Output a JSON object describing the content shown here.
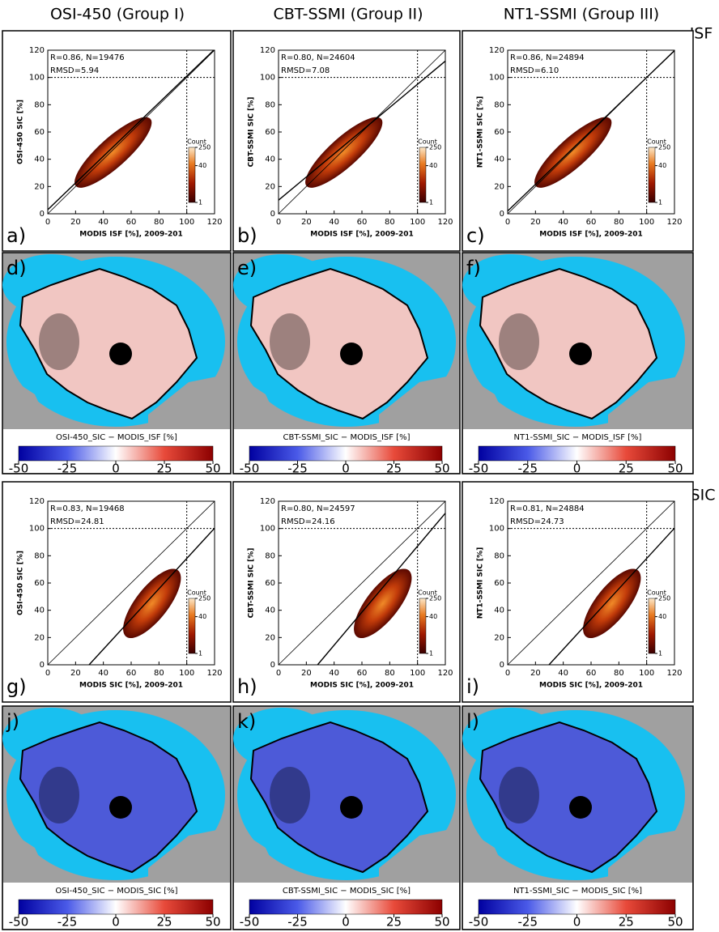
{
  "figure": {
    "columns": [
      "OSI-450 (Group I)",
      "CBT-SSMI (Group II)",
      "NT1-SSMI (Group III)"
    ],
    "rows": [
      "ISF",
      "SIC"
    ],
    "axis_lim": [
      0,
      120
    ],
    "axis_ticks": [
      0,
      20,
      40,
      60,
      80,
      100,
      120
    ],
    "ref_line": 100,
    "count_bar": {
      "title": "Count",
      "ticks": [
        250,
        40,
        1
      ]
    },
    "map_ticks": [
      -50,
      -25,
      0,
      25,
      50
    ],
    "scatter_panels": [
      {
        "letter": "a)",
        "stats": "R=0.86, N=19476",
        "rmsd": "RMSD=5.94",
        "xlabel": "MODIS ISF [%], 2009-201",
        "ylabel": "OSI-450 SIC [%]",
        "fit": {
          "intercept": 3,
          "slope": 0.98
        }
      },
      {
        "letter": "b)",
        "stats": "R=0.80, N=24604",
        "rmsd": "RMSD=7.08",
        "xlabel": "MODIS ISF [%], 2009-201",
        "ylabel": "CBT-SSMI SIC [%]",
        "fit": {
          "intercept": 10,
          "slope": 0.85
        }
      },
      {
        "letter": "c)",
        "stats": "R=0.86, N=24894",
        "rmsd": "RMSD=6.10",
        "xlabel": "MODIS ISF [%], 2009-201",
        "ylabel": "NT1-SSMI SIC [%]",
        "fit": {
          "intercept": 2,
          "slope": 0.98
        }
      },
      {
        "letter": "g)",
        "stats": "R=0.83, N=19468",
        "rmsd": "RMSD=24.81",
        "xlabel": "MODIS SIC [%], 2009-201",
        "ylabel": "OSI-450 SIC [%]",
        "fit": {
          "intercept": -33,
          "slope": 1.11
        }
      },
      {
        "letter": "h)",
        "stats": "R=0.80, N=24597",
        "rmsd": "RMSD=24.16",
        "xlabel": "MODIS SIC [%], 2009-201",
        "ylabel": "CBT-SSMI SIC [%]",
        "fit": {
          "intercept": -34,
          "slope": 1.21
        }
      },
      {
        "letter": "i)",
        "stats": "R=0.81, N=24884",
        "rmsd": "RMSD=24.73",
        "xlabel": "MODIS SIC [%], 2009-201",
        "ylabel": "NT1-SSMI SIC [%]",
        "fit": {
          "intercept": -33,
          "slope": 1.11
        }
      }
    ],
    "map_panels": [
      {
        "letter": "d)",
        "colorbar_label": "OSI-450_SIC − MODIS_ISF [%]"
      },
      {
        "letter": "e)",
        "colorbar_label": "CBT-SSMI_SIC − MODIS_ISF [%]"
      },
      {
        "letter": "f)",
        "colorbar_label": "NT1-SSMI_SIC − MODIS_ISF [%]"
      },
      {
        "letter": "j)",
        "colorbar_label": "OSI-450_SIC − MODIS_SIC [%]"
      },
      {
        "letter": "k)",
        "colorbar_label": "CBT-SSMI_SIC − MODIS_SIC [%]"
      },
      {
        "letter": "l)",
        "colorbar_label": "NT1-SSMI_SIC − MODIS_SIC [%]"
      }
    ]
  }
}
